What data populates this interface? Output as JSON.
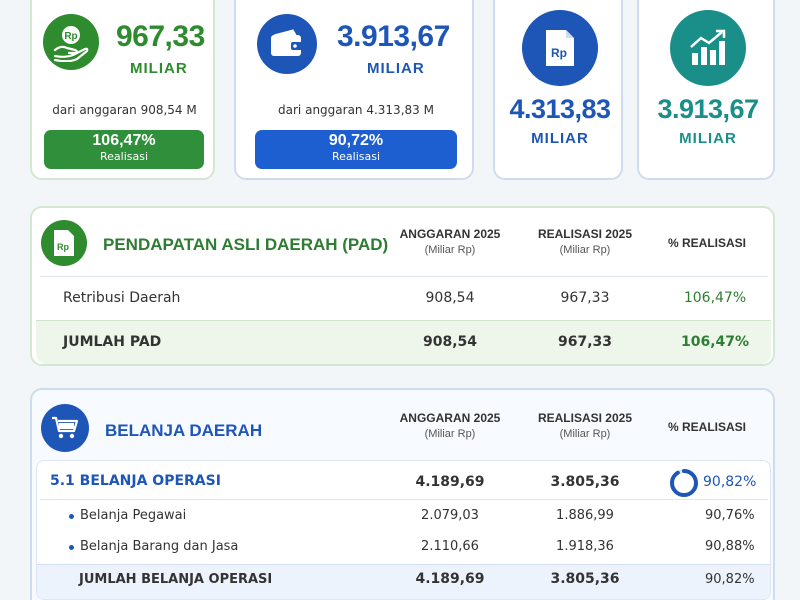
{
  "colors": {
    "green": "#2e8b2e",
    "blue": "#1e56b8",
    "teal": "#1a8f8a",
    "pill_green": "#2f8f3a",
    "pill_blue": "#1d5fd0"
  },
  "kpi": {
    "pad": {
      "icon": "money-hand-icon",
      "value": "967,33",
      "unit": "MILIAR",
      "budget_text": "dari anggaran 908,54 M",
      "percent": "106,47%",
      "percent_label": "Realisasi"
    },
    "spending": {
      "icon": "wallet-icon",
      "value": "3.913,67",
      "unit": "MILIAR",
      "budget_text": "dari anggaran 4.313,83 M",
      "percent": "90,72%",
      "percent_label": "Realisasi"
    },
    "budget": {
      "icon": "document-rp-icon",
      "icon_text": "Rp",
      "value": "4.313,83",
      "unit": "MILIAR"
    },
    "realization": {
      "icon": "growth-chart-icon",
      "value": "3.913,67",
      "unit": "MILIAR"
    }
  },
  "pad_section": {
    "icon": "document-rp-icon",
    "icon_text": "Rp",
    "title": "PENDAPATAN ASLI DAERAH (PAD)",
    "col_budget": "ANGGARAN 2025",
    "col_budget_sub": "(Miliar Rp)",
    "col_real": "REALISASI 2025",
    "col_real_sub": "(Miliar Rp)",
    "col_pct": "% REALISASI",
    "rows": [
      {
        "label": "Retribusi Daerah",
        "budget": "908,54",
        "real": "967,33",
        "pct": "106,47%"
      },
      {
        "label": "JUMLAH PAD",
        "budget": "908,54",
        "real": "967,33",
        "pct": "106,47%"
      }
    ]
  },
  "belanja_section": {
    "icon": "cart-icon",
    "title": "BELANJA DAERAH",
    "col_budget": "ANGGARAN 2025",
    "col_budget_sub": "(Miliar Rp)",
    "col_real": "REALISASI 2025",
    "col_real_sub": "(Miliar Rp)",
    "col_pct": "% REALISASI",
    "group": {
      "label": "5.1  BELANJA OPERASI",
      "budget": "4.189,69",
      "real": "3.805,36",
      "pct": "90,82%",
      "progress": 0.9082
    },
    "items": [
      {
        "label": "Belanja Pegawai",
        "budget": "2.079,03",
        "real": "1.886,99",
        "pct": "90,76%"
      },
      {
        "label": "Belanja Barang dan Jasa",
        "budget": "2.110,66",
        "real": "1.918,36",
        "pct": "90,88%"
      }
    ],
    "total": {
      "label": "JUMLAH BELANJA OPERASI",
      "budget": "4.189,69",
      "real": "3.805,36",
      "pct": "90,82%"
    }
  }
}
